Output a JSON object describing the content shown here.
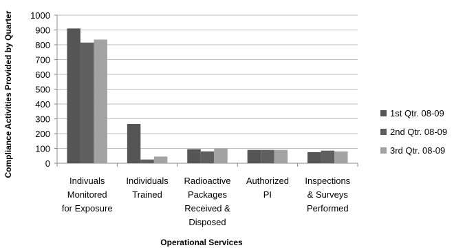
{
  "chart_data": {
    "type": "bar",
    "title": "",
    "xlabel": "Operational Services",
    "ylabel": "Compliance Activities Provided by Quarter",
    "ylim": [
      0,
      1000
    ],
    "yticks": [
      0,
      100,
      200,
      300,
      400,
      500,
      600,
      700,
      800,
      900,
      1000
    ],
    "categories": [
      [
        "Indivuals",
        "Monitored",
        "for Exposure"
      ],
      [
        "Individuals",
        "Trained"
      ],
      [
        "Radioactive",
        "Packages",
        "Received &",
        "Disposed"
      ],
      [
        "Authorized",
        "PI"
      ],
      [
        "Inspections",
        "& Surveys",
        "Performed"
      ]
    ],
    "series": [
      {
        "name": "1st Qtr. 08-09",
        "color": "#555555",
        "values": [
          910,
          265,
          95,
          90,
          75
        ]
      },
      {
        "name": "2nd Qtr. 08-09",
        "color": "#5f5f5f",
        "values": [
          815,
          25,
          80,
          90,
          85
        ]
      },
      {
        "name": "3rd Qtr. 08-09",
        "color": "#a3a3a3",
        "values": [
          835,
          45,
          100,
          90,
          80
        ]
      }
    ],
    "grid": true,
    "legend": "right"
  }
}
